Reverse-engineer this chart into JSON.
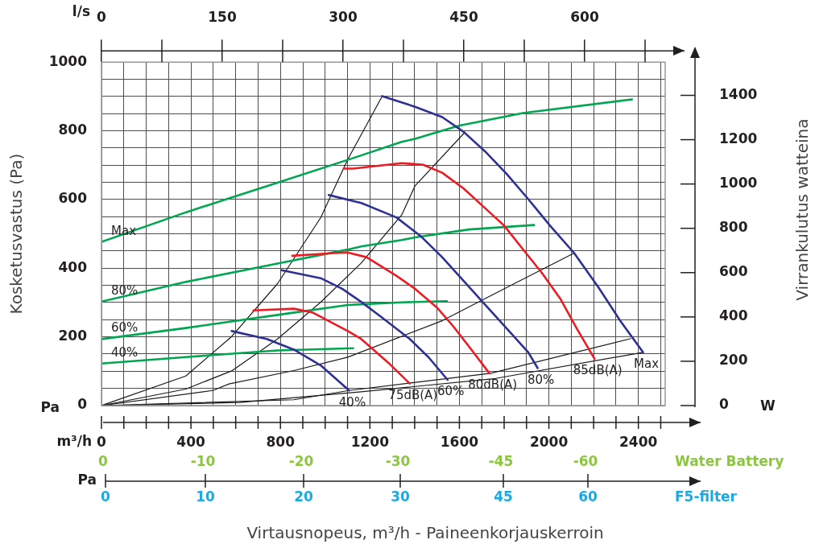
{
  "chart_data": {
    "type": "line",
    "xlabel": "Virtausnopeus, m³/h - Paineenkorjauskerroin",
    "ylabel": "Kosketusvastus (Pa)",
    "y2label": "Virrankulutus watteina",
    "x2label": "l/s",
    "annotations": [
      "m³/h",
      "Pa",
      "Pa",
      "W",
      "Water Battery",
      "0",
      "-10",
      "-20",
      "-30",
      "-45",
      "-60",
      "F5-filter",
      "0",
      "10",
      "20",
      "30",
      "45",
      "60"
    ],
    "xlim": [
      0,
      2520
    ],
    "xticks": [
      0,
      {
        "value": 100,
        "label": null
      },
      {
        "value": 200,
        "label": null
      },
      {
        "value": 300,
        "label": null
      },
      400,
      {
        "value": 500,
        "label": null
      },
      {
        "value": 600,
        "label": null
      },
      {
        "value": 700,
        "label": null
      },
      800,
      {
        "value": 900,
        "label": null
      },
      {
        "value": 1000,
        "label": null
      },
      {
        "value": 1100,
        "label": null
      },
      1200,
      {
        "value": 1300,
        "label": null
      },
      {
        "value": 1400,
        "label": null
      },
      {
        "value": 1500,
        "label": null
      },
      1600,
      {
        "value": 1700,
        "label": null
      },
      {
        "value": 1800,
        "label": null
      },
      {
        "value": 1900,
        "label": null
      },
      2000,
      {
        "value": 2100,
        "label": null
      },
      {
        "value": 2200,
        "label": null
      },
      {
        "value": 2300,
        "label": null
      },
      2400,
      {
        "value": 2500,
        "label": null
      }
    ],
    "x2lim": [
      0,
      700
    ],
    "x2ticks": [
      0,
      150,
      300,
      450,
      600
    ],
    "ylim": [
      0,
      1000
    ],
    "yticks": [
      0,
      {
        "value": 50,
        "label": null
      },
      {
        "value": 100,
        "label": null
      },
      {
        "value": 150,
        "label": null
      },
      200,
      {
        "value": 250,
        "label": null
      },
      {
        "value": 300,
        "label": null
      },
      {
        "value": 350,
        "label": null
      },
      400,
      {
        "value": 450,
        "label": null
      },
      {
        "value": 500,
        "label": null
      },
      {
        "value": 550,
        "label": null
      },
      600,
      {
        "value": 650,
        "label": null
      },
      {
        "value": 700,
        "label": null
      },
      {
        "value": 750,
        "label": null
      },
      800,
      {
        "value": 850,
        "label": null
      },
      {
        "value": 900,
        "label": null
      },
      {
        "value": 950,
        "label": null
      },
      1000
    ],
    "y2lim": [
      0,
      1550
    ],
    "y2ticks": [
      0,
      200,
      400,
      600,
      800,
      1000,
      1200,
      1400
    ],
    "grid": true,
    "legend": false,
    "marker": "none",
    "line_style": "solid",
    "series": [
      {
        "name": "Max",
        "color": "#2e3192",
        "x": [
          1255,
          1402,
          1523,
          1619,
          1715,
          1812,
          1908,
          2005,
          2113,
          2222,
          2318,
          2421
        ],
        "values": [
          901,
          870,
          840,
          797,
          740,
          674,
          601,
          524,
          444,
          344,
          248,
          155
        ]
      },
      {
        "name": "80%",
        "color": "#2e3192",
        "x": [
          1016,
          1161,
          1318,
          1426,
          1523,
          1619,
          1715,
          1812,
          1908,
          1950
        ],
        "values": [
          613,
          590,
          548,
          494,
          432,
          363,
          294,
          224,
          155,
          109
        ]
      },
      {
        "name": "60%",
        "color": "#2e3192",
        "x": [
          805,
          980,
          1076,
          1161,
          1257,
          1378,
          1463,
          1547
        ],
        "values": [
          394,
          371,
          340,
          302,
          255,
          194,
          140,
          75
        ]
      },
      {
        "name": "40%",
        "color": "#2e3192",
        "x": [
          582,
          739,
          860,
          980,
          1107
        ],
        "values": [
          217,
          194,
          163,
          117,
          44
        ]
      },
      {
        "name": "85dB(A)",
        "color": "#ed1c24",
        "x": [
          1083,
          1125,
          1342,
          1438,
          1523,
          1619,
          1703,
          1800,
          1884,
          1969,
          2053,
          2125,
          2204
        ],
        "values": [
          690,
          690,
          706,
          701,
          678,
          632,
          582,
          524,
          455,
          386,
          309,
          224,
          136
        ]
      },
      {
        "name": "80dB(A)",
        "color": "#ed1c24",
        "x": [
          853,
          1040,
          1100,
          1185,
          1318,
          1402,
          1499,
          1571,
          1644,
          1734
        ],
        "values": [
          436,
          444,
          446,
          432,
          378,
          340,
          286,
          232,
          171,
          94
        ]
      },
      {
        "name": "75dB(A)",
        "color": "#ed1c24",
        "x": [
          679,
          860,
          944,
          1101,
          1161,
          1282,
          1378
        ],
        "values": [
          277,
          282,
          271,
          217,
          194,
          125,
          64
        ]
      },
      {
        "name": "Max",
        "color": "#00a651",
        "axis": "y2",
        "x": [
          0,
          377,
          787,
          1101,
          1161,
          1342,
          1402,
          1597,
          1884,
          2372
        ],
        "values": [
          739,
          872,
          1006,
          1109,
          1129,
          1190,
          1204,
          1263,
          1320,
          1382
        ]
      },
      {
        "name": "80%",
        "color": "#00a651",
        "axis": "y2",
        "x": [
          0,
          377,
          787,
          1101,
          1161,
          1342,
          1402,
          1644,
          1934
        ],
        "values": [
          469,
          558,
          641,
          704,
          718,
          747,
          759,
          795,
          815
        ]
      },
      {
        "name": "60%",
        "color": "#00a651",
        "axis": "y2",
        "x": [
          0,
          377,
          787,
          1101,
          1161,
          1342,
          1544
        ],
        "values": [
          300,
          350,
          409,
          454,
          457,
          466,
          471
        ]
      },
      {
        "name": "40%",
        "color": "#00a651",
        "axis": "y2",
        "x": [
          0,
          377,
          787,
          1125
        ],
        "values": [
          190,
          219,
          249,
          259
        ]
      },
      {
        "color": "#1a1a1a",
        "x": [
          0,
          377,
          582,
          787,
          980,
          1101,
          1255
        ],
        "values": [
          0,
          86,
          201,
          355,
          547,
          717,
          901
        ]
      },
      {
        "color": "#1a1a1a",
        "x": [
          0,
          377,
          582,
          787,
          980,
          1161,
          1342,
          1402,
          1625
        ],
        "values": [
          0,
          48,
          101,
          194,
          301,
          415,
          555,
          640,
          796
        ]
      },
      {
        "color": "#1a1a1a",
        "x": [
          0,
          498,
          570,
          860,
          1101,
          1523,
          1824,
          2113
        ],
        "values": [
          0,
          44,
          63,
          102,
          141,
          247,
          348,
          444
        ]
      },
      {
        "color": "#1a1a1a",
        "x": [
          0,
          860,
          1107,
          1740,
          2366
        ],
        "values": [
          0,
          17,
          44,
          94,
          195
        ]
      },
      {
        "color": "#1a1a1a",
        "x": [
          0,
          618,
          1161,
          1763,
          2421
        ],
        "values": [
          0,
          9,
          40,
          79,
          155
        ]
      }
    ]
  }
}
